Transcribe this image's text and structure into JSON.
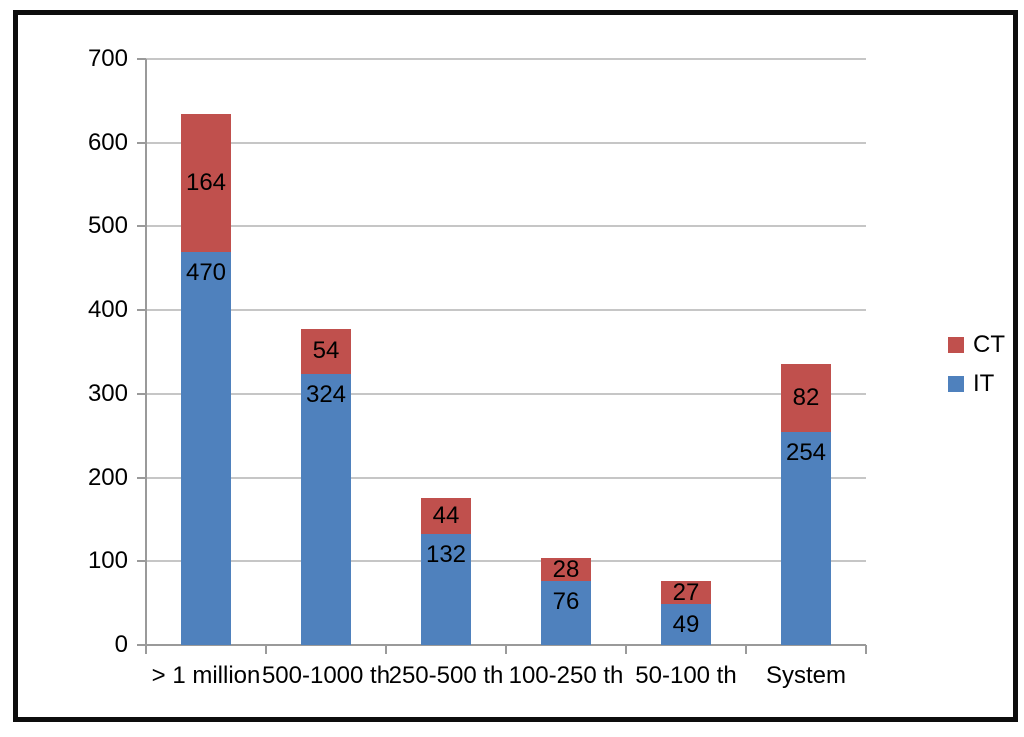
{
  "chart_data": {
    "type": "bar",
    "stacked": true,
    "title": "",
    "categories": [
      "> 1 million",
      "500-1000 th",
      "250-500 th",
      "100-250 th",
      "50-100 th",
      "System"
    ],
    "series": [
      {
        "name": "IT",
        "color": "#4F81BD",
        "label_position": "inside-end",
        "values": [
          470,
          324,
          132,
          76,
          49,
          254
        ]
      },
      {
        "name": "CT",
        "color": "#C0504D",
        "label_position": "center",
        "values": [
          164,
          54,
          44,
          28,
          27,
          82
        ]
      }
    ],
    "totals": [
      634,
      378,
      176,
      104,
      76,
      336
    ],
    "y_axis": {
      "min": 0,
      "max": 700,
      "tick_step": 100,
      "tick_labels": [
        "0",
        "100",
        "200",
        "300",
        "400",
        "500",
        "600",
        "700"
      ]
    },
    "x_axis": {
      "label": ""
    },
    "grid": true,
    "data_labels": true,
    "legend": {
      "position": "right",
      "entries": [
        "CT",
        "IT"
      ]
    },
    "colors": {
      "it_blue": "#4F81BD",
      "ct_red": "#C0504D",
      "gridline": "#c6c6c6",
      "axis": "#9a9a9a",
      "frame": "#0d0d0d",
      "text": "#000000"
    }
  }
}
